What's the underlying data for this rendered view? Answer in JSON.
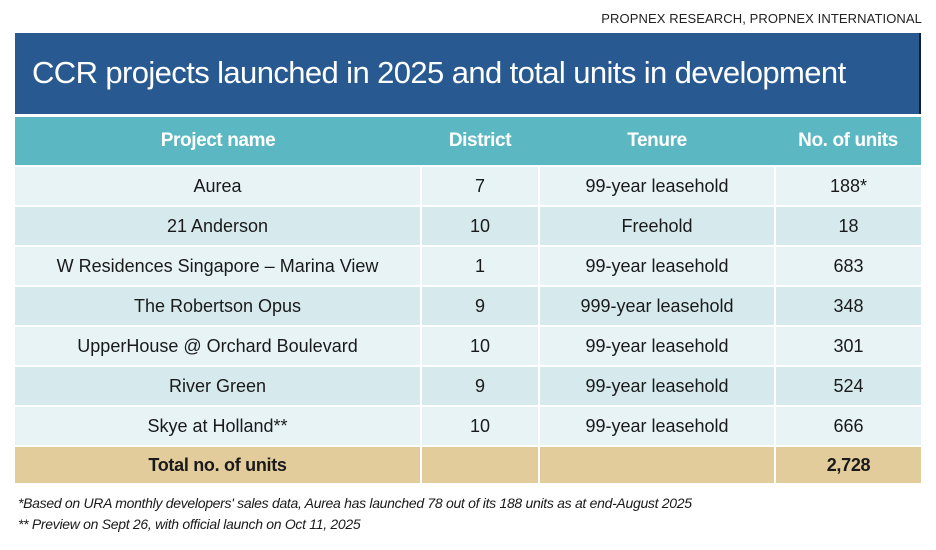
{
  "source": "PROPNEX RESEARCH, PROPNEX INTERNATIONAL",
  "title": "CCR projects launched in 2025 and total units in development",
  "colors": {
    "title_bg": "#285a91",
    "header_bg": "#5bb8c3",
    "row_light": "#e8f3f6",
    "row_dark": "#d6eaee",
    "total_bg": "#e3cc9c"
  },
  "table": {
    "headers": [
      "Project name",
      "District",
      "Tenure",
      "No. of units"
    ],
    "rows": [
      {
        "project": "Aurea",
        "district": "7",
        "tenure": "99-year leasehold",
        "units": "188*"
      },
      {
        "project": "21 Anderson",
        "district": "10",
        "tenure": "Freehold",
        "units": "18"
      },
      {
        "project": "W Residences Singapore – Marina View",
        "district": "1",
        "tenure": "99-year leasehold",
        "units": "683"
      },
      {
        "project": "The Robertson Opus",
        "district": "9",
        "tenure": "999-year leasehold",
        "units": "348"
      },
      {
        "project": "UpperHouse @ Orchard Boulevard",
        "district": "10",
        "tenure": "99-year leasehold",
        "units": "301"
      },
      {
        "project": "River Green",
        "district": "9",
        "tenure": "99-year leasehold",
        "units": "524"
      },
      {
        "project": "Skye at Holland**",
        "district": "10",
        "tenure": "99-year leasehold",
        "units": "666"
      }
    ],
    "total": {
      "label": "Total no. of units",
      "district": "",
      "tenure": "",
      "units": "2,728"
    }
  },
  "footnotes": [
    "*Based on URA monthly developers' sales data, Aurea has launched 78 out of its 188 units as at end-August 2025",
    "** Preview on Sept 26, with official launch on Oct 11, 2025"
  ]
}
